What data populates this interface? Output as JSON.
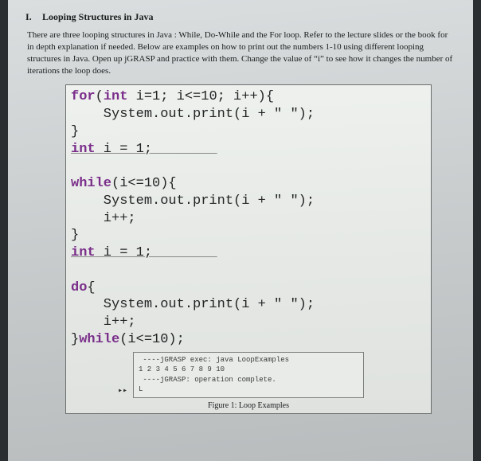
{
  "heading": {
    "number": "I.",
    "title": "Looping Structures in Java"
  },
  "paragraph": "There are three looping structures in Java : While, Do-While and the For loop. Refer to the lecture slides or the book for in depth explanation if needed. Below are examples on how to print out the numbers 1-10 using different looping structures in Java. Open up jGRASP and practice with them. Change the value of “i” to see how it changes the number of iterations the loop does.",
  "code": {
    "for_line": "for(int i=1; i<=10; i++){",
    "for_body": "    System.out.print(i + \" \");",
    "for_close": "}",
    "decl1": "int i = 1;",
    "blank": "",
    "while_line": "while(i<=10){",
    "while_body1": "    System.out.print(i + \" \");",
    "while_body2": "    i++;",
    "while_close": "}",
    "decl2": "int i = 1;",
    "do_line": "do{",
    "do_body1": "    System.out.print(i + \" \");",
    "do_body2": "    i++;",
    "do_close": "}while(i<=10);"
  },
  "console": {
    "line1": " ----jGRASP exec: java LoopExamples",
    "line2": "1 2 3 4 5 6 7 8 9 10",
    "line3": " ----jGRASP: operation complete.",
    "arrow": "▸▸",
    "end": "L"
  },
  "caption": "Figure 1: Loop Examples",
  "colors": {
    "keyword": "#7a2e8a",
    "text": "#232525",
    "frame_border": "#6a6e6c",
    "page_bg_top": "#dadedf",
    "page_bg_bot": "#b8bcbd"
  }
}
